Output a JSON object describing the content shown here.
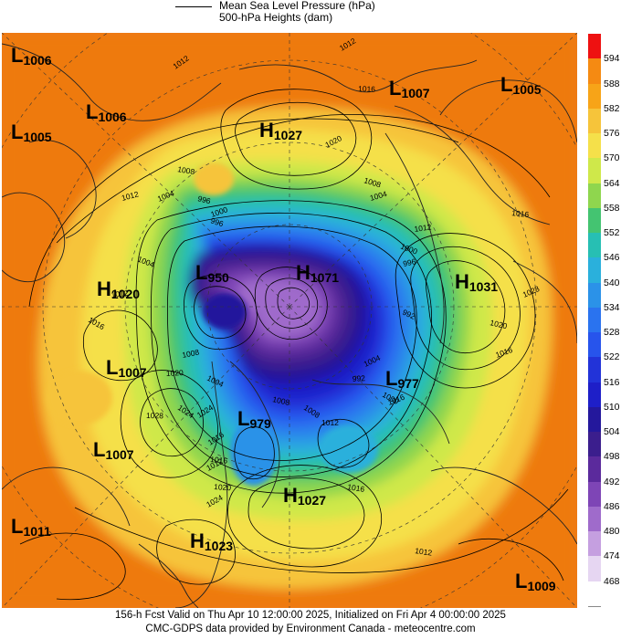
{
  "header": {
    "line1": "Mean Sea Level Pressure (hPa)",
    "line2": "500-hPa Heights (dam)"
  },
  "colorbar": {
    "levels": [
      "594",
      "588",
      "582",
      "576",
      "570",
      "564",
      "558",
      "552",
      "546",
      "540",
      "534",
      "528",
      "522",
      "516",
      "510",
      "504",
      "498",
      "492",
      "486",
      "480",
      "474",
      "468"
    ],
    "colors": [
      "#ee1111",
      "#f58a12",
      "#f7a418",
      "#f6c43a",
      "#f5e04a",
      "#cfe84a",
      "#8fd64e",
      "#44c471",
      "#27bfb3",
      "#2ab0dc",
      "#2b92e8",
      "#2a73ef",
      "#2754ec",
      "#2233d8",
      "#1e1fc8",
      "#24189c",
      "#3b1e8d",
      "#5b2a9c",
      "#7e45b6",
      "#9f6bcb",
      "#c59fe0",
      "#e6d6f2"
    ],
    "bottom_color": "#ffffff"
  },
  "centers": [
    {
      "type": "L",
      "value": "1006"
    },
    {
      "type": "L",
      "value": "1006"
    },
    {
      "type": "L",
      "value": "1005"
    },
    {
      "type": "H",
      "value": "1027"
    },
    {
      "type": "L",
      "value": "1007"
    },
    {
      "type": "L",
      "value": "1005"
    },
    {
      "type": "H",
      "value": "1020"
    },
    {
      "type": "L",
      "value": "950"
    },
    {
      "type": "H",
      "value": "1071"
    },
    {
      "type": "H",
      "value": "1031"
    },
    {
      "type": "L",
      "value": "1007"
    },
    {
      "type": "L",
      "value": "977"
    },
    {
      "type": "L",
      "value": "979"
    },
    {
      "type": "L",
      "value": "1007"
    },
    {
      "type": "H",
      "value": "1027"
    },
    {
      "type": "L",
      "value": "1011"
    },
    {
      "type": "H",
      "value": "1023"
    },
    {
      "type": "L",
      "value": "1009"
    }
  ],
  "isobar_labels": [
    "1012",
    "1016",
    "1012",
    "1016",
    "1020",
    "1008",
    "1004",
    "996",
    "1000",
    "996",
    "1012",
    "1004",
    "1008",
    "1004",
    "1012",
    "1016",
    "1020",
    "1024",
    "1028",
    "1024",
    "1016",
    "1012",
    "1016",
    "1028",
    "1020",
    "1016",
    "1008",
    "1004",
    "1000",
    "996",
    "992",
    "1012",
    "1000",
    "992",
    "1008",
    "1012",
    "1016",
    "1020",
    "1024",
    "1012",
    "1004",
    "1008",
    "1016"
  ],
  "footer": {
    "line1": "156-h Fcst Valid on Thu Apr 10 12:00:00 2025, Initialized on Fri Apr  4 00:00:00 2025",
    "line2": "CMC-GDPS data provided by Environment Canada - meteocentre.com"
  }
}
